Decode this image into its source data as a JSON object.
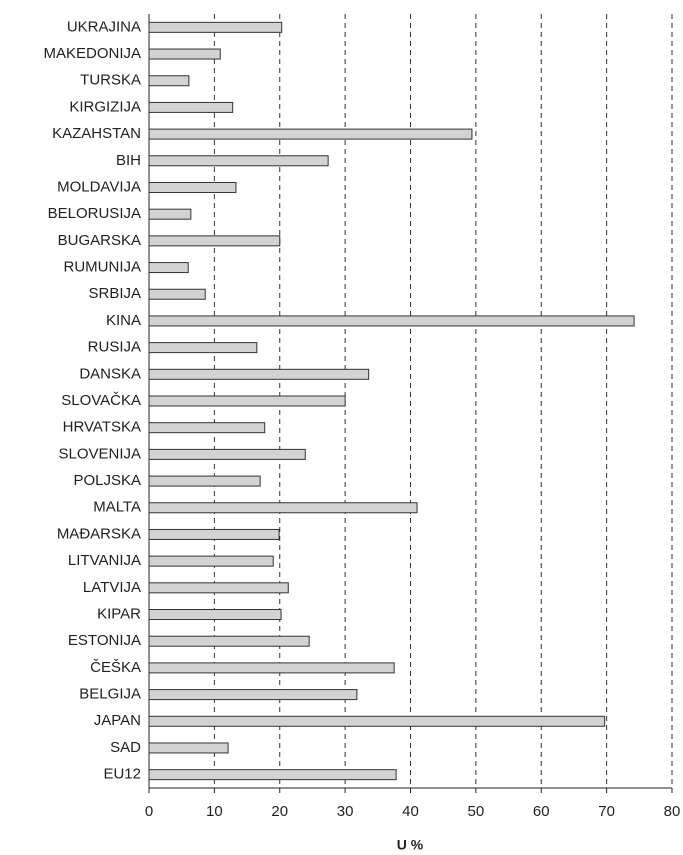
{
  "chart_data": {
    "type": "barh",
    "xlabel": "U %",
    "categories": [
      "UKRAJINA",
      "MAKEDONIJA",
      "TURSKA",
      "KIRGIZIJA",
      "KAZAHSTAN",
      "BIH",
      "MOLDAVIJA",
      "BELORUSIJA",
      "BUGARSKA",
      "RUMUNIJA",
      "SRBIJA",
      "KINA",
      "RUSIJA",
      "DANSKA",
      "SLOVAČKA",
      "HRVATSKA",
      "SLOVENIJA",
      "POLJSKA",
      "MALTA",
      "MAĐARSKA",
      "LITVANIJA",
      "LATVIJA",
      "KIPAR",
      "ESTONIJA",
      "ČEŠKA",
      "BELGIJA",
      "JAPAN",
      "SAD",
      "EU12"
    ],
    "values": [
      20.3,
      10.9,
      6.1,
      12.8,
      49.4,
      27.4,
      13.3,
      6.4,
      20,
      6,
      8.6,
      74.2,
      16.5,
      33.6,
      30,
      17.7,
      23.9,
      17,
      41,
      19.9,
      19,
      21.3,
      20.2,
      24.5,
      37.5,
      31.8,
      69.7,
      12.1,
      37.8
    ],
    "color": "#d3d3d3",
    "xlim": [
      0,
      80
    ],
    "xticks": [
      0,
      10,
      20,
      30,
      40,
      50,
      60,
      70,
      80
    ],
    "grid": true
  }
}
